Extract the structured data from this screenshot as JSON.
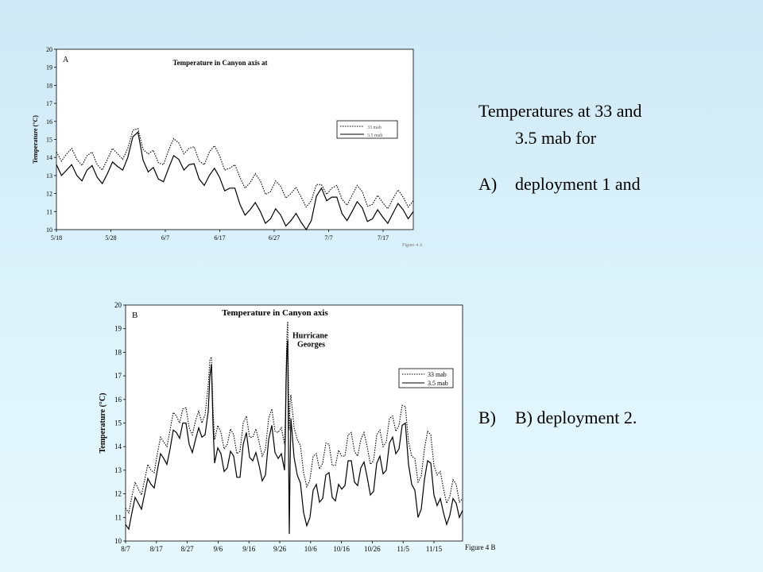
{
  "description": {
    "line1": "Temperatures at 33 and",
    "line2": "3.5 mab for",
    "item_a_marker": "A)",
    "item_a_text": "deployment 1 and",
    "item_b_marker": "B)",
    "item_b_text": "B) deployment 2."
  },
  "chart_data": [
    {
      "type": "line",
      "panel_label": "A",
      "title": "Temperature in Canyon axis at",
      "ylabel": "Temperature (°C)",
      "xlabel": "",
      "figure_caption": "Figure 4 A",
      "ylim": [
        10,
        20
      ],
      "yticks": [
        10,
        11,
        12,
        13,
        14,
        15,
        16,
        17,
        18,
        19,
        20
      ],
      "xticks": [
        "5/18",
        "5/28",
        "6/7",
        "6/17",
        "6/27",
        "7/7",
        "7/17"
      ],
      "xlim": [
        0,
        70
      ],
      "legend": [
        "33 mab",
        "3.5 mab"
      ],
      "legend_position": "right",
      "colors": {
        "series": "#000000",
        "background": "#ffffff"
      },
      "series": [
        {
          "name": "33 mab",
          "style": "dotted",
          "x": [
            0,
            2,
            4,
            6,
            8,
            10,
            12,
            14,
            16,
            18,
            20,
            22,
            24,
            26,
            28,
            30,
            32,
            34,
            36,
            38,
            40,
            42,
            44,
            46,
            48,
            50,
            52,
            54,
            56,
            58,
            60,
            62,
            64,
            66,
            68,
            70
          ],
          "y": [
            14.3,
            14.2,
            13.9,
            14.1,
            13.6,
            13.9,
            14.2,
            14.5,
            15.6,
            14.2,
            13.7,
            14.4,
            14.8,
            14.5,
            13.8,
            14.3,
            14.1,
            13.4,
            12.9,
            12.6,
            12.7,
            12.1,
            12.4,
            12.0,
            11.8,
            11.6,
            12.5,
            12.3,
            11.7,
            11.9,
            12.1,
            11.4,
            11.5,
            11.7,
            11.8,
            11.6
          ]
        },
        {
          "name": "3.5 mab",
          "style": "solid",
          "x": [
            0,
            2,
            4,
            6,
            8,
            10,
            12,
            14,
            16,
            18,
            20,
            22,
            24,
            26,
            28,
            30,
            32,
            34,
            36,
            38,
            40,
            42,
            44,
            46,
            48,
            50,
            52,
            54,
            56,
            58,
            60,
            62,
            64,
            66,
            68,
            70
          ],
          "y": [
            13.6,
            13.3,
            13.0,
            13.3,
            12.9,
            13.1,
            13.5,
            14.0,
            15.4,
            13.2,
            12.8,
            13.4,
            13.9,
            13.6,
            12.8,
            13.0,
            12.9,
            12.3,
            11.4,
            11.1,
            11.0,
            10.6,
            10.8,
            10.5,
            10.4,
            10.5,
            12.3,
            11.8,
            10.9,
            11.0,
            11.2,
            10.6,
            10.7,
            10.9,
            11.1,
            11.0
          ]
        }
      ]
    },
    {
      "type": "line",
      "panel_label": "B",
      "title": "Temperature in Canyon axis",
      "ylabel": "Temperature (°C)",
      "xlabel": "",
      "figure_caption": "Figure 4 B",
      "ylim": [
        10,
        20
      ],
      "yticks": [
        10,
        11,
        12,
        13,
        14,
        15,
        16,
        17,
        18,
        19,
        20
      ],
      "xticks": [
        "8/7",
        "8/17",
        "8/27",
        "9/6",
        "9/16",
        "9/26",
        "10/6",
        "10/16",
        "10/26",
        "11/5",
        "11/15"
      ],
      "xlim": [
        0,
        106
      ],
      "legend": [
        "33 mab",
        "3.5 mab"
      ],
      "legend_position": "right",
      "annotations": [
        {
          "text": "Hurricane Georges",
          "x": 51.5,
          "y": 18.4
        }
      ],
      "colors": {
        "series": "#000000",
        "background": "#ffffff"
      },
      "series": [
        {
          "name": "33 mab",
          "style": "dotted",
          "x": [
            0,
            2,
            4,
            6,
            8,
            10,
            12,
            14,
            16,
            18,
            20,
            22,
            24,
            26,
            27,
            28,
            30,
            32,
            34,
            36,
            38,
            40,
            42,
            44,
            46,
            48,
            50,
            50.5,
            51,
            51.5,
            52,
            54,
            56,
            58,
            60,
            62,
            64,
            66,
            68,
            70,
            72,
            74,
            76,
            78,
            80,
            82,
            84,
            86,
            88,
            90,
            92,
            94,
            96,
            98,
            100,
            102,
            104,
            106
          ],
          "y": [
            11.4,
            11.9,
            12.2,
            12.6,
            13.0,
            13.7,
            14.2,
            14.7,
            15.3,
            15.6,
            14.8,
            15.1,
            15.0,
            16.6,
            17.8,
            14.3,
            14.6,
            14.1,
            14.5,
            13.8,
            15.3,
            14.4,
            14.2,
            13.9,
            15.6,
            14.6,
            14.1,
            17.2,
            19.3,
            14.7,
            16.2,
            14.3,
            12.9,
            12.6,
            13.7,
            13.3,
            14.1,
            13.2,
            13.6,
            14.5,
            13.8,
            14.3,
            14.0,
            13.4,
            14.7,
            14.2,
            15.3,
            14.9,
            15.7,
            13.6,
            12.5,
            13.9,
            14.5,
            12.8,
            12.2,
            11.9,
            12.4,
            11.8
          ]
        },
        {
          "name": "3.5 mab",
          "style": "solid",
          "x": [
            0,
            2,
            4,
            6,
            8,
            10,
            12,
            14,
            16,
            18,
            20,
            22,
            24,
            26,
            27,
            28,
            30,
            32,
            34,
            36,
            38,
            40,
            42,
            44,
            46,
            48,
            50,
            50.5,
            51,
            51.5,
            52,
            54,
            56,
            58,
            60,
            62,
            64,
            66,
            68,
            70,
            72,
            74,
            76,
            78,
            80,
            82,
            84,
            86,
            88,
            90,
            92,
            94,
            96,
            98,
            100,
            102,
            104,
            106
          ],
          "y": [
            10.7,
            11.2,
            11.6,
            12.0,
            12.4,
            13.0,
            13.5,
            13.9,
            14.6,
            15.0,
            14.1,
            14.3,
            14.4,
            15.5,
            17.5,
            13.3,
            13.7,
            13.1,
            13.6,
            12.7,
            14.6,
            13.4,
            13.2,
            12.8,
            14.9,
            13.5,
            13.0,
            16.8,
            18.5,
            10.3,
            15.2,
            12.8,
            11.2,
            11.0,
            12.4,
            11.8,
            12.9,
            11.7,
            12.2,
            13.4,
            12.5,
            13.1,
            12.7,
            12.1,
            13.6,
            13.0,
            14.4,
            13.9,
            15.0,
            12.4,
            11.0,
            12.6,
            13.3,
            11.5,
            11.2,
            11.1,
            11.6,
            11.3
          ]
        }
      ]
    }
  ]
}
